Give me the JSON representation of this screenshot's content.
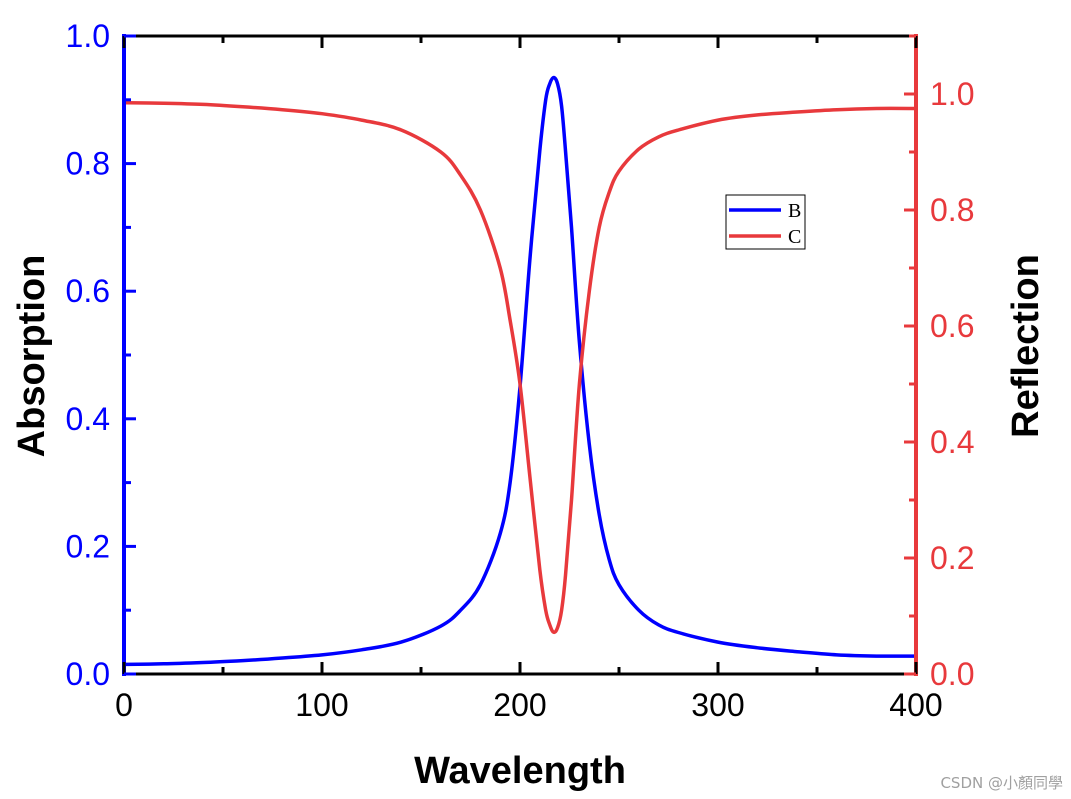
{
  "chart_data": {
    "type": "line",
    "title": "",
    "xlabel": "Wavelength",
    "ylabel_left": "Absorption",
    "ylabel_right": "Reflection",
    "xlim": [
      0,
      400
    ],
    "ylim_left": [
      0,
      1.0
    ],
    "ylim_right": [
      0,
      1.1
    ],
    "x_ticks": [
      "0",
      "100",
      "200",
      "300",
      "400"
    ],
    "y_left_ticks": [
      "0.0",
      "0.2",
      "0.4",
      "0.6",
      "0.8",
      "1.0"
    ],
    "y_right_ticks": [
      "0.0",
      "0.2",
      "0.4",
      "0.6",
      "0.8",
      "1.0"
    ],
    "legend_position": "upper-right",
    "colors": {
      "left_axis": "#0000ff",
      "right_axis": "#e8393c",
      "frame": "#000000"
    },
    "series": [
      {
        "name": "B",
        "axis": "left",
        "color": "#0000ff",
        "x": [
          0,
          20,
          40,
          60,
          80,
          100,
          120,
          140,
          160,
          170,
          180,
          190,
          195,
          200,
          205,
          210,
          213,
          215,
          217,
          219,
          221,
          223,
          226,
          230,
          235,
          240,
          245,
          250,
          260,
          270,
          280,
          300,
          320,
          340,
          360,
          380,
          400
        ],
        "values": [
          0.015,
          0.016,
          0.018,
          0.021,
          0.025,
          0.03,
          0.038,
          0.05,
          0.075,
          0.1,
          0.14,
          0.22,
          0.3,
          0.45,
          0.65,
          0.82,
          0.9,
          0.925,
          0.935,
          0.925,
          0.89,
          0.82,
          0.7,
          0.52,
          0.36,
          0.25,
          0.18,
          0.14,
          0.1,
          0.077,
          0.065,
          0.05,
          0.041,
          0.035,
          0.03,
          0.028,
          0.028
        ]
      },
      {
        "name": "C",
        "axis": "right",
        "color": "#e8393c",
        "x": [
          0,
          20,
          40,
          60,
          80,
          100,
          120,
          140,
          160,
          170,
          180,
          190,
          195,
          200,
          205,
          210,
          213,
          215,
          217,
          219,
          221,
          223,
          226,
          230,
          235,
          240,
          245,
          250,
          260,
          270,
          280,
          300,
          320,
          340,
          360,
          380,
          400
        ],
        "values": [
          0.985,
          0.984,
          0.982,
          0.978,
          0.973,
          0.966,
          0.955,
          0.938,
          0.9,
          0.86,
          0.8,
          0.7,
          0.61,
          0.5,
          0.34,
          0.18,
          0.11,
          0.085,
          0.072,
          0.08,
          0.11,
          0.17,
          0.3,
          0.5,
          0.66,
          0.77,
          0.83,
          0.867,
          0.905,
          0.926,
          0.938,
          0.955,
          0.964,
          0.969,
          0.973,
          0.975,
          0.975
        ]
      }
    ]
  },
  "watermark": "CSDN @小顏同學"
}
